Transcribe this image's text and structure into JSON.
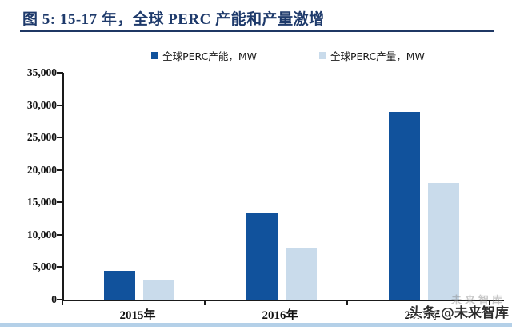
{
  "title": {
    "text": "图 5: 15-17 年，全球 PERC 产能和产量激增"
  },
  "colors": {
    "title_navy": "#1e3a6b",
    "rule_navy": "#1f3864",
    "capacity_bar": "#11529c",
    "production_bar": "#c9dbeb",
    "axis": "#1a1a1a",
    "bottom_strip": "#b4d0e8"
  },
  "chart_data": {
    "type": "bar",
    "categories": [
      "2015年",
      "2016年",
      "2017年"
    ],
    "series": [
      {
        "name": "全球PERC产能，MW",
        "color": "#11529c",
        "values": [
          4500,
          13300,
          29000
        ]
      },
      {
        "name": "全球PERC产量，MW",
        "color": "#c9dbeb",
        "values": [
          2900,
          8000,
          18000
        ]
      }
    ],
    "title": "图 5: 15-17 年，全球 PERC 产能和产量激增",
    "xlabel": "",
    "ylabel": "",
    "ylim": [
      0,
      35000
    ],
    "ytick_interval": 5000,
    "ytick_labels": [
      "0",
      "5,000",
      "10,000",
      "15,000",
      "20,000",
      "25,000",
      "30,000",
      "35,000"
    ],
    "grid": false,
    "legend_position": "top-center"
  },
  "watermark": {
    "main": "头条 @未来智库",
    "ghost": "未来智库"
  }
}
